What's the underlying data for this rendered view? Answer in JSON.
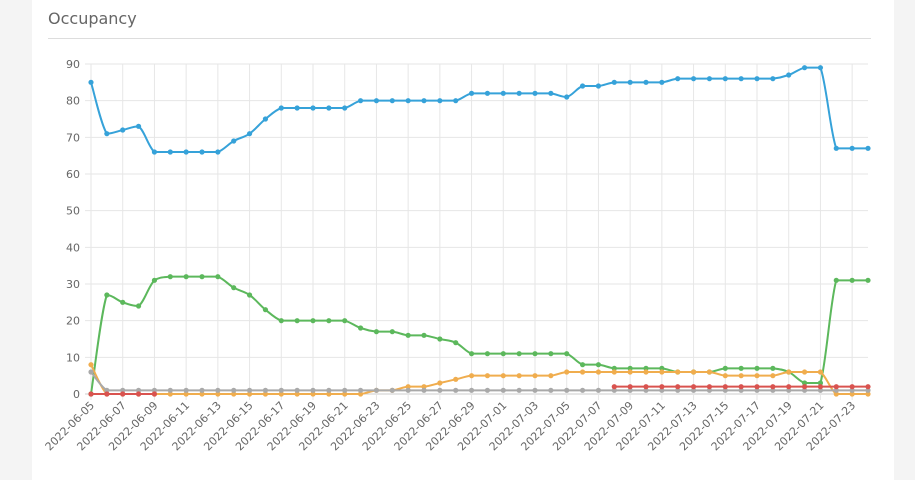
{
  "card": {
    "title": "Occupancy"
  },
  "chart_data": {
    "type": "line",
    "x": [
      "2022-06-05",
      "2022-06-06",
      "2022-06-07",
      "2022-06-08",
      "2022-06-09",
      "2022-06-10",
      "2022-06-11",
      "2022-06-12",
      "2022-06-13",
      "2022-06-14",
      "2022-06-15",
      "2022-06-16",
      "2022-06-17",
      "2022-06-18",
      "2022-06-19",
      "2022-06-20",
      "2022-06-21",
      "2022-06-22",
      "2022-06-23",
      "2022-06-24",
      "2022-06-25",
      "2022-06-26",
      "2022-06-27",
      "2022-06-28",
      "2022-06-29",
      "2022-06-30",
      "2022-07-01",
      "2022-07-02",
      "2022-07-03",
      "2022-07-04",
      "2022-07-05",
      "2022-07-06",
      "2022-07-07",
      "2022-07-08",
      "2022-07-09",
      "2022-07-10",
      "2022-07-11",
      "2022-07-12",
      "2022-07-13",
      "2022-07-14",
      "2022-07-15",
      "2022-07-16",
      "2022-07-17",
      "2022-07-18",
      "2022-07-19",
      "2022-07-20",
      "2022-07-21",
      "2022-07-22",
      "2022-07-23",
      "2022-07-24"
    ],
    "x_tick_labels": [
      "2022-06-05",
      "2022-06-07",
      "2022-06-09",
      "2022-06-11",
      "2022-06-13",
      "2022-06-15",
      "2022-06-17",
      "2022-06-19",
      "2022-06-21",
      "2022-06-23",
      "2022-06-25",
      "2022-06-27",
      "2022-06-29",
      "2022-07-01",
      "2022-07-03",
      "2022-07-05",
      "2022-07-07",
      "2022-07-09",
      "2022-07-11",
      "2022-07-13",
      "2022-07-15",
      "2022-07-17",
      "2022-07-19",
      "2022-07-21",
      "2022-07-23"
    ],
    "y_ticks": [
      0,
      10,
      20,
      30,
      40,
      50,
      60,
      70,
      80,
      90
    ],
    "ylim": [
      0,
      90
    ],
    "grid": true,
    "series": [
      {
        "color": "#36a2d9",
        "values": [
          85,
          71,
          72,
          73,
          66,
          66,
          66,
          66,
          66,
          69,
          71,
          75,
          78,
          78,
          78,
          78,
          78,
          80,
          80,
          80,
          80,
          80,
          80,
          80,
          82,
          82,
          82,
          82,
          82,
          82,
          81,
          84,
          84,
          85,
          85,
          85,
          85,
          86,
          86,
          86,
          86,
          86,
          86,
          86,
          87,
          89,
          89,
          67,
          67,
          67
        ]
      },
      {
        "color": "#5cb85c",
        "values": [
          0,
          27,
          25,
          24,
          31,
          32,
          32,
          32,
          32,
          29,
          27,
          23,
          20,
          20,
          20,
          20,
          20,
          18,
          17,
          17,
          16,
          16,
          15,
          14,
          11,
          11,
          11,
          11,
          11,
          11,
          11,
          8,
          8,
          7,
          7,
          7,
          7,
          6,
          6,
          6,
          7,
          7,
          7,
          7,
          6,
          3,
          3,
          31,
          31,
          31
        ]
      },
      {
        "color": "#f0ad4e",
        "values": [
          8,
          0,
          0,
          0,
          0,
          0,
          0,
          0,
          0,
          0,
          0,
          0,
          0,
          0,
          0,
          0,
          0,
          0,
          1,
          1,
          2,
          2,
          3,
          4,
          5,
          5,
          5,
          5,
          5,
          5,
          6,
          6,
          6,
          6,
          6,
          6,
          6,
          6,
          6,
          6,
          5,
          5,
          5,
          5,
          6,
          6,
          6,
          0,
          0,
          0
        ]
      },
      {
        "color": "#a9a9a9",
        "values": [
          6,
          1,
          1,
          1,
          1,
          1,
          1,
          1,
          1,
          1,
          1,
          1,
          1,
          1,
          1,
          1,
          1,
          1,
          1,
          1,
          1,
          1,
          1,
          1,
          1,
          1,
          1,
          1,
          1,
          1,
          1,
          1,
          1,
          1,
          1,
          1,
          1,
          1,
          1,
          1,
          1,
          1,
          1,
          1,
          1,
          1,
          1,
          1,
          1,
          1
        ]
      },
      {
        "color": "#d9534f",
        "values": [
          0,
          0,
          0,
          0,
          0,
          null,
          null,
          null,
          null,
          null,
          null,
          null,
          null,
          null,
          null,
          null,
          null,
          null,
          null,
          null,
          null,
          null,
          null,
          null,
          null,
          null,
          null,
          null,
          null,
          null,
          null,
          null,
          null,
          2,
          2,
          2,
          2,
          2,
          2,
          2,
          2,
          2,
          2,
          2,
          2,
          2,
          2,
          2,
          2,
          2
        ]
      }
    ]
  }
}
